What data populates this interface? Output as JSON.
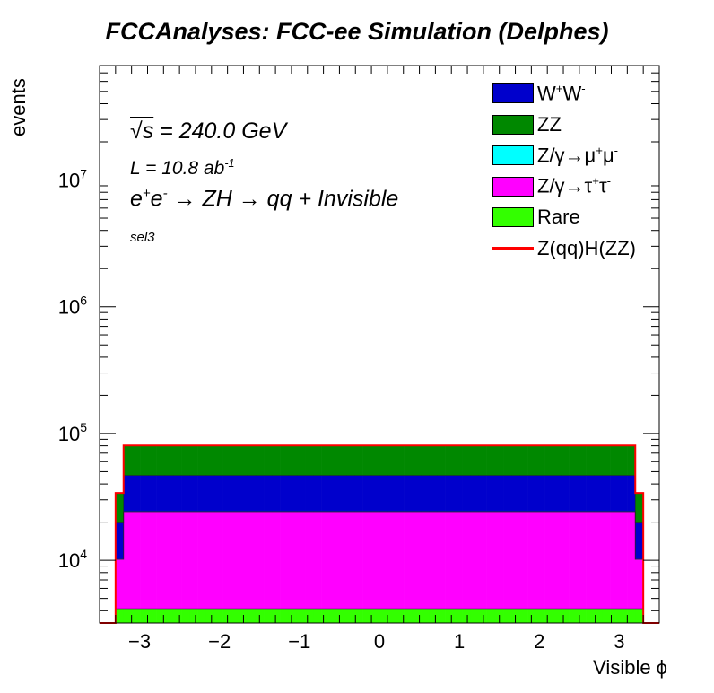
{
  "title": "FCCAnalyses: FCC-ee Simulation (Delphes)",
  "annotations": {
    "sqrt_s_symbol": "√s",
    "sqrt_s_value": " = 240.0 GeV",
    "lumi_prefix": "L = 10.8 ab",
    "lumi_exp": "-1",
    "process_e1": "e",
    "process_e1_sup": "+",
    "process_e2": "e",
    "process_e2_sup": "-",
    "process_rest": " → ZH → qq + Invisible",
    "selection": "sel3"
  },
  "legend": [
    {
      "base": "W",
      "sup1": "+",
      "mid": "W",
      "sup2": "-",
      "color": "#0000cc"
    },
    {
      "base": "ZZ",
      "sup1": "",
      "mid": "",
      "sup2": "",
      "color": "#008800"
    },
    {
      "base": "Z/γ→μ",
      "sup1": "+",
      "mid": "μ",
      "sup2": "-",
      "color": "#00ffff"
    },
    {
      "base": "Z/γ→τ",
      "sup1": "+",
      "mid": "τ",
      "sup2": "-",
      "color": "#ff00ff"
    },
    {
      "base": "Rare",
      "sup1": "",
      "mid": "",
      "sup2": "",
      "color": "#33ff00"
    },
    {
      "base": "Z(qq)H(ZZ)",
      "sup1": "",
      "mid": "",
      "sup2": "",
      "color": "#ff0000",
      "line": true
    }
  ],
  "chart_data": {
    "type": "area",
    "subtype": "stacked-histogram",
    "title": "FCCAnalyses: FCC-ee Simulation (Delphes)",
    "xlabel": "Visible ϕ",
    "ylabel": "events",
    "xlim": [
      -3.5,
      3.5
    ],
    "ylim": [
      3200,
      80000000
    ],
    "log_y": true,
    "grid": false,
    "legend_position": "top-right",
    "x_ticks": [
      "−3",
      "−2",
      "−1",
      "0",
      "1",
      "2",
      "3"
    ],
    "y_ticks": [
      {
        "base": "10",
        "exp": "4",
        "value": 10000
      },
      {
        "base": "10",
        "exp": "5",
        "value": 100000
      },
      {
        "base": "10",
        "exp": "6",
        "value": 1000000
      },
      {
        "base": "10",
        "exp": "7",
        "value": 10000000
      }
    ],
    "bins": {
      "edges_start": -3.2,
      "edges_end": 3.2,
      "central_bins": 62,
      "edge_bins": [
        -3.3,
        -3.2,
        3.2,
        3.3
      ]
    },
    "stack_order": [
      "Rare",
      "Z/γ→τ+τ-",
      "Z/γ→μ+μ-",
      "W+W-",
      "ZZ"
    ],
    "series": [
      {
        "name": "Rare",
        "color": "#33ff00",
        "central": 4150,
        "edge": 4150
      },
      {
        "name": "Z/γ→τ+τ-",
        "color": "#ff00ff",
        "central": 20000,
        "edge": 6000
      },
      {
        "name": "Z/γ→μ+μ-",
        "color": "#00ffff",
        "central": 100,
        "edge": 50
      },
      {
        "name": "W+W-",
        "color": "#0000cc",
        "central": 22500,
        "edge": 9500
      },
      {
        "name": "ZZ",
        "color": "#008800",
        "central": 33500,
        "edge": 14000
      }
    ],
    "signal": {
      "name": "Z(qq)H(ZZ)",
      "color": "#ff0000",
      "central": 80500,
      "edge": 34000
    }
  }
}
